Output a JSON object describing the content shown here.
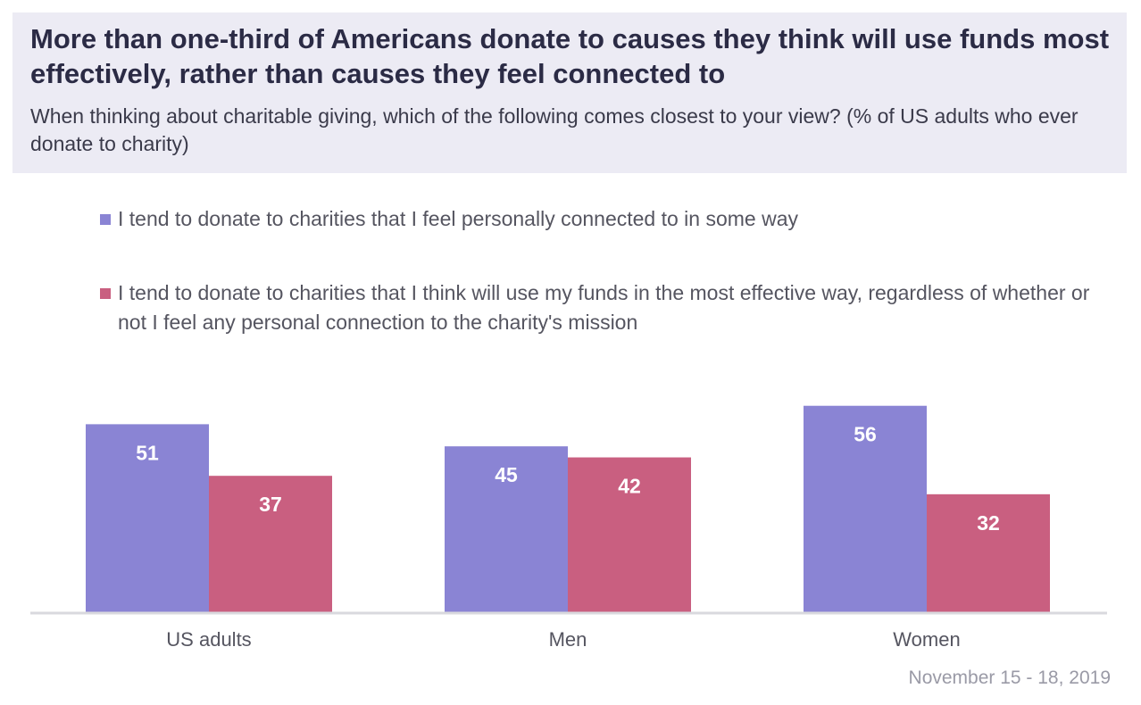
{
  "title": "More than one-third of Americans donate to causes they think will use funds most effectively, rather than causes they feel connected to",
  "subtitle": "When thinking about charitable giving, which of the following comes closest to your view? (% of US adults who ever donate to charity)",
  "date_note": "November 15 - 18, 2019",
  "colors": {
    "series_1": "#8a84d4",
    "series_2": "#c95f80",
    "header_bg": "#ecebf4",
    "axis": "#d9d9de"
  },
  "chart_data": {
    "type": "bar",
    "categories": [
      "US adults",
      "Men",
      "Women"
    ],
    "series": [
      {
        "name": "I tend to donate to charities that I feel personally connected to in some way",
        "values": [
          51,
          45,
          56
        ]
      },
      {
        "name": "I tend to donate to charities that I think will use my funds in the most effective way, regardless of whether or not I feel any personal connection to the charity's mission",
        "values": [
          37,
          42,
          32
        ]
      }
    ],
    "ylim": [
      0,
      56
    ],
    "grid": false,
    "legend_placement": "top",
    "data_labels": true
  }
}
